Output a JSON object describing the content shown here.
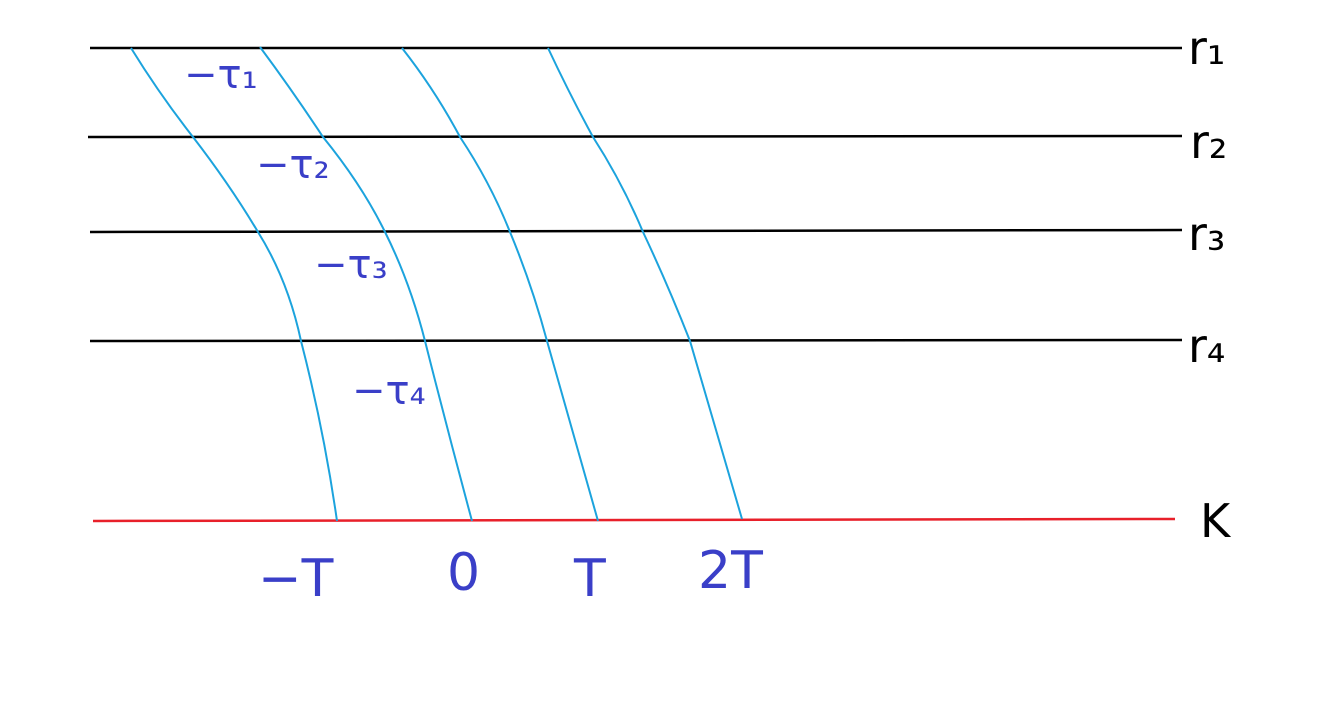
{
  "colors": {
    "line": "#000000",
    "reference": "#e8202a",
    "curve": "#1ca3dd",
    "annotation": "#3a3fc8"
  },
  "lines": [
    {
      "label": "r₁"
    },
    {
      "label": "r₂"
    },
    {
      "label": "r₃"
    },
    {
      "label": "r₄"
    }
  ],
  "reference_line": {
    "label": "K"
  },
  "delays": [
    "−τ₁",
    "−τ₂",
    "−τ₃",
    "−τ₄"
  ],
  "ticks": [
    "−T",
    "0",
    "T",
    "2T"
  ]
}
